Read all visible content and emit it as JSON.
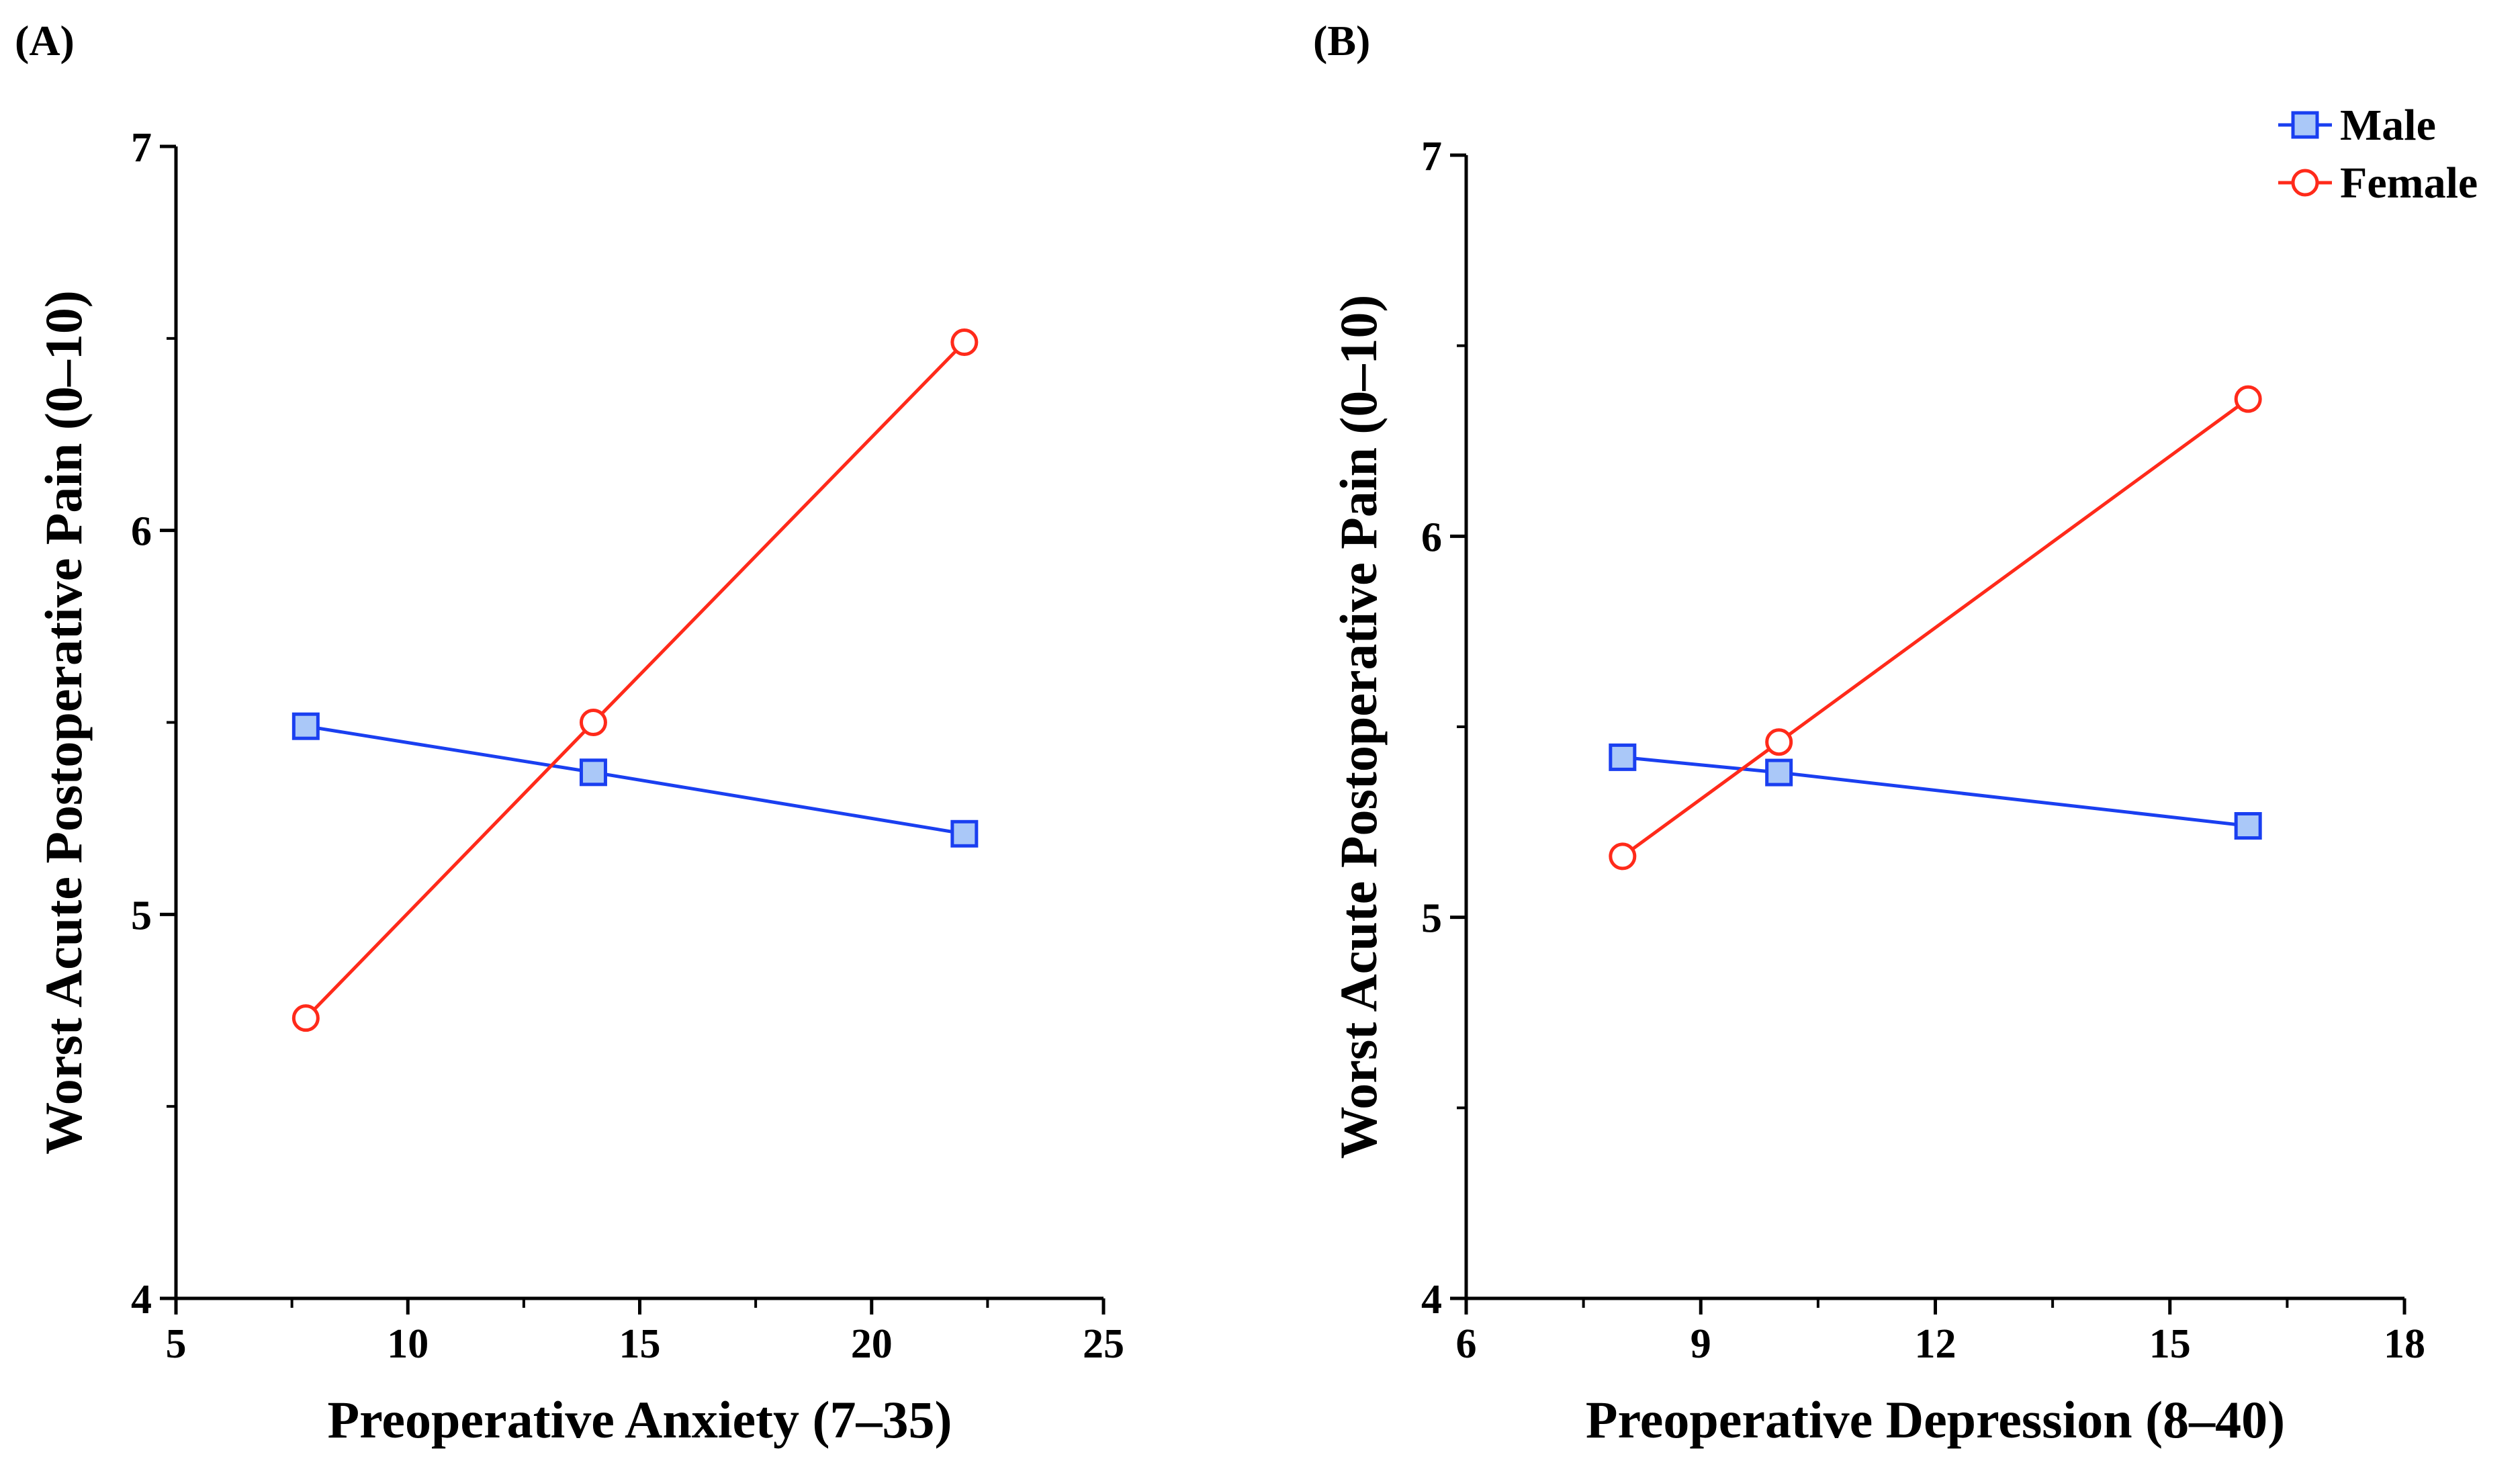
{
  "chart_data": [
    {
      "type": "line",
      "panel_label": "(A)",
      "title": "",
      "xlabel": "Preoperative Anxiety (7–35)",
      "ylabel": "Worst Acute Postoperative Pain (0–10)",
      "xlim": [
        5,
        25
      ],
      "ylim": [
        4,
        7
      ],
      "x_ticks": [
        "5",
        "10",
        "15",
        "20",
        "25"
      ],
      "y_ticks": [
        "4",
        "5",
        "6",
        "7"
      ],
      "series": [
        {
          "name": "Male",
          "color": "#1a3ff0",
          "marker": "square",
          "x": [
            7.8,
            14,
            22
          ],
          "y": [
            5.49,
            5.37,
            5.21
          ]
        },
        {
          "name": "Female",
          "color": "#ff2a1a",
          "marker": "circle",
          "x": [
            7.8,
            14,
            22
          ],
          "y": [
            4.73,
            5.5,
            6.49
          ]
        }
      ]
    },
    {
      "type": "line",
      "panel_label": "(B)",
      "title": "",
      "xlabel": "Preoperative Depression (8–40)",
      "ylabel": "Worst Acute Postoperative Pain (0–10)",
      "xlim": [
        6,
        18
      ],
      "ylim": [
        4,
        7
      ],
      "x_ticks": [
        "6",
        "9",
        "12",
        "15",
        "18"
      ],
      "y_ticks": [
        "4",
        "5",
        "6",
        "7"
      ],
      "legend": {
        "position": "top-right",
        "entries": [
          "Male",
          "Female"
        ]
      },
      "series": [
        {
          "name": "Male",
          "color": "#1a3ff0",
          "marker": "square",
          "x": [
            8,
            10,
            16
          ],
          "y": [
            5.42,
            5.38,
            5.24
          ]
        },
        {
          "name": "Female",
          "color": "#ff2a1a",
          "marker": "circle",
          "x": [
            8,
            10,
            16
          ],
          "y": [
            5.16,
            5.46,
            6.36
          ]
        }
      ]
    }
  ]
}
